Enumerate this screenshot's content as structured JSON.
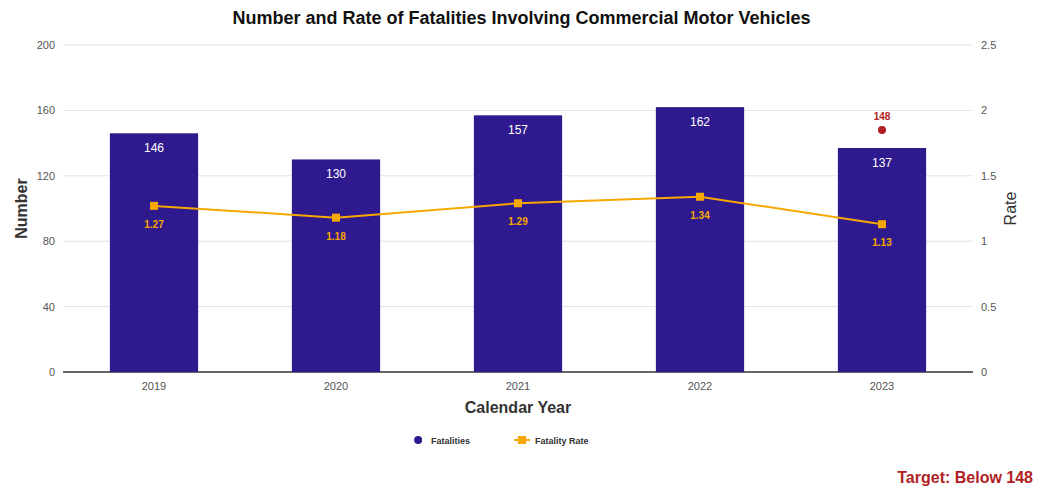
{
  "chart_data": {
    "type": "bar",
    "title": "Number and Rate of Fatalities Involving Commercial Motor Vehicles",
    "x_label": "Calendar Year",
    "y_label": "Number",
    "y2_label": "Rate",
    "categories": [
      "2019",
      "2020",
      "2021",
      "2022",
      "2023"
    ],
    "series": [
      {
        "name": "Fatalities",
        "type": "bar",
        "color": "#2e1a8e",
        "marker": "circle",
        "data_labels": true,
        "values": [
          146,
          130,
          157,
          162,
          137
        ]
      },
      {
        "name": "Fatality Rate",
        "type": "line",
        "axis": "y2",
        "color": "#f7a800",
        "marker": "square",
        "data_labels": true,
        "values": [
          1.27,
          1.18,
          1.29,
          1.34,
          1.13
        ]
      }
    ],
    "target": {
      "values": [
        null,
        null,
        null,
        null,
        148
      ],
      "color": "#b01e23",
      "marker": "circle",
      "data_labels": true
    },
    "annotation": "Target: Below 148",
    "ylim": [
      0,
      200
    ],
    "yticks": [
      0,
      40,
      80,
      120,
      160,
      200
    ],
    "y2lim": [
      0,
      2.5
    ],
    "y2ticks": [
      0,
      0.5,
      1,
      1.5,
      2,
      2.5
    ],
    "grid": true,
    "legend": "bottom"
  }
}
